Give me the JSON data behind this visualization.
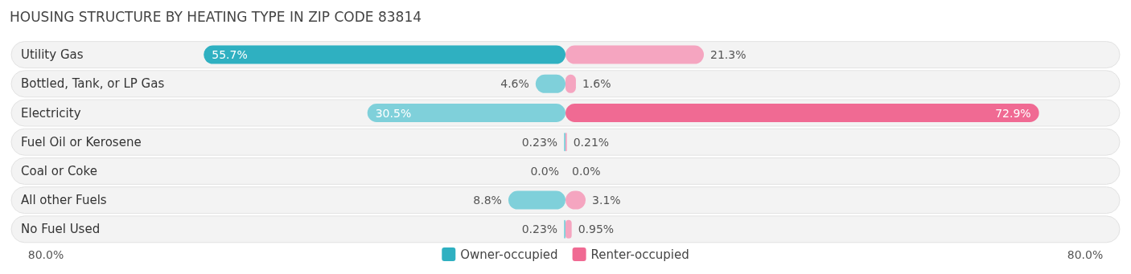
{
  "chart_data": {
    "type": "bar",
    "orientation": "horizontal",
    "title": "HOUSING STRUCTURE BY HEATING TYPE IN ZIP CODE 83814",
    "categories": [
      "Utility Gas",
      "Bottled, Tank, or LP Gas",
      "Electricity",
      "Fuel Oil or Kerosene",
      "Coal or Coke",
      "All other Fuels",
      "No Fuel Used"
    ],
    "series": [
      {
        "name": "Owner-occupied",
        "color": "#2fb0c1",
        "colors": [
          "#2fb0c1",
          "#7fd0da",
          "#7fd0da",
          "#7fd0da",
          "#7fd0da",
          "#7fd0da",
          "#7fd0da"
        ],
        "values": [
          -55.7,
          -4.6,
          -30.5,
          -0.23,
          0.0,
          -8.8,
          -0.23
        ]
      },
      {
        "name": "Renter-occupied",
        "color": "#f06a93",
        "colors": [
          "#f5a5c0",
          "#f5a5c0",
          "#f06a93",
          "#f5a5c0",
          "#f5a5c0",
          "#f5a5c0",
          "#f5a5c0"
        ],
        "values": [
          21.3,
          1.6,
          72.9,
          0.21,
          0.0,
          3.1,
          0.95
        ]
      }
    ],
    "value_labels": [
      [
        "55.7%",
        "4.6%",
        "30.5%",
        "0.23%",
        "0.0%",
        "8.8%",
        "0.23%"
      ],
      [
        "21.3%",
        "1.6%",
        "72.9%",
        "0.21%",
        "0.0%",
        "3.1%",
        "0.95%"
      ]
    ],
    "xlim": [
      -80,
      80
    ],
    "xticks": [
      {
        "value": -80,
        "label": "80.0%"
      },
      {
        "value": 80,
        "label": "80.0%"
      }
    ],
    "stacked": true,
    "legend": "bottom"
  }
}
